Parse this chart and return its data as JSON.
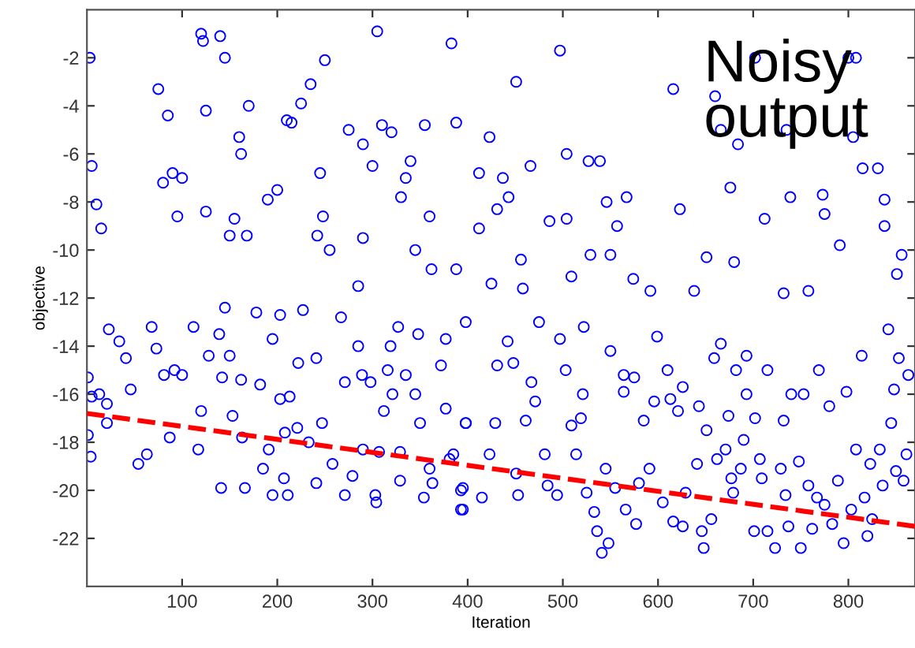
{
  "chart_data": {
    "type": "scatter",
    "xlabel": "Iteration",
    "ylabel": "objective",
    "annotations": [
      "Noisy\noutput"
    ],
    "xlim": [
      0,
      870
    ],
    "ylim": [
      -24,
      0
    ],
    "xticks": [
      100,
      200,
      300,
      400,
      500,
      600,
      700,
      800
    ],
    "yticks": [
      -22,
      -20,
      -18,
      -16,
      -14,
      -12,
      -10,
      -8,
      -6,
      -4,
      -2
    ],
    "grid": false,
    "legend": false,
    "series": [
      {
        "marker": "circle",
        "color": "#0000ff",
        "x": [
          3,
          5,
          10,
          15,
          120,
          122,
          140,
          145,
          125,
          75,
          85,
          80,
          90,
          100,
          95,
          125,
          155,
          160,
          162,
          170,
          168,
          150,
          190,
          200,
          210,
          215,
          225,
          235,
          250,
          245,
          248,
          242,
          305,
          310,
          320,
          330,
          335,
          340,
          355,
          360,
          362,
          345,
          290,
          275,
          300,
          290,
          255,
          285,
          383,
          497,
          451,
          616,
          702,
          800,
          808,
          660,
          666,
          735,
          805,
          684,
          388,
          423,
          504,
          527,
          539,
          412,
          437,
          466,
          443,
          431,
          676,
          623,
          739,
          773,
          815,
          831,
          838,
          712,
          775,
          791,
          838,
          856,
          851,
          546,
          567,
          557,
          504,
          486,
          412,
          456,
          529,
          550,
          651,
          680,
          388,
          509,
          425,
          458,
          574,
          592,
          638,
          732,
          758,
          1,
          5,
          13,
          21,
          1,
          4,
          21,
          23,
          34,
          41,
          46,
          54,
          63,
          68,
          73,
          81,
          92,
          87,
          100,
          112,
          117,
          120,
          128,
          139,
          142,
          145,
          150,
          162,
          141,
          166,
          153,
          163,
          178,
          182,
          191,
          185,
          195,
          203,
          203,
          208,
          213,
          207,
          195,
          211,
          221,
          222,
          227,
          233,
          241,
          241,
          247,
          258,
          267,
          271,
          271,
          279,
          285,
          289,
          290,
          298,
          303,
          304,
          307,
          312,
          316,
          319,
          321,
          327,
          329,
          329,
          335,
          345,
          348,
          350,
          354,
          360,
          363,
          377,
          372,
          377,
          385,
          393,
          395,
          398,
          398,
          381,
          398,
          393,
          395,
          415,
          423,
          429,
          431,
          442,
          448,
          451,
          453,
          461,
          467,
          471,
          475,
          481,
          484,
          494,
          497,
          503,
          509,
          514,
          519,
          522,
          521,
          525,
          533,
          536,
          541,
          545,
          548,
          550,
          555,
          564,
          564,
          566,
          575,
          577,
          580,
          585,
          591,
          596,
          599,
          605,
          610,
          613,
          616,
          621,
          626,
          626,
          629,
          641,
          643,
          646,
          648,
          651,
          656,
          659,
          662,
          666,
          671,
          674,
          677,
          679,
          682,
          687,
          690,
          693,
          693,
          701,
          702,
          707,
          709,
          715,
          715,
          723,
          729,
          732,
          734,
          737,
          740,
          748,
          750,
          753,
          758,
          762,
          767,
          769,
          775,
          780,
          783,
          789,
          795,
          798,
          803,
          808,
          814,
          817,
          820,
          823,
          825,
          833,
          836,
          842,
          845,
          848,
          850,
          853,
          858,
          861,
          863
        ],
        "values": [
          -2.0,
          -6.5,
          -8.1,
          -9.1,
          -1.0,
          -1.3,
          -1.1,
          -2.0,
          -4.2,
          -3.3,
          -4.4,
          -7.2,
          -6.8,
          -7.0,
          -8.6,
          -8.4,
          -8.7,
          -5.3,
          -6.0,
          -4.0,
          -9.4,
          -9.4,
          -7.9,
          -7.5,
          -4.6,
          -4.7,
          -3.9,
          -3.1,
          -2.1,
          -6.8,
          -8.6,
          -9.4,
          -0.9,
          -4.8,
          -5.1,
          -7.8,
          -7.0,
          -6.3,
          -4.8,
          -8.6,
          -10.8,
          -10.0,
          -5.6,
          -5.0,
          -6.5,
          -9.5,
          -10.0,
          -11.5,
          -1.4,
          -1.7,
          -3.0,
          -3.3,
          -2.0,
          -2.0,
          -2.0,
          -3.6,
          -5.0,
          -5.0,
          -5.3,
          -5.6,
          -4.7,
          -5.3,
          -6.0,
          -6.3,
          -6.3,
          -6.8,
          -7.0,
          -6.5,
          -7.8,
          -8.3,
          -7.4,
          -8.3,
          -7.8,
          -7.7,
          -6.6,
          -6.6,
          -7.9,
          -8.7,
          -8.5,
          -9.8,
          -9.0,
          -10.2,
          -11.0,
          -8.0,
          -7.8,
          -9.0,
          -8.7,
          -8.8,
          -9.1,
          -10.4,
          -10.2,
          -10.2,
          -10.3,
          -10.5,
          -10.8,
          -11.1,
          -11.4,
          -11.6,
          -11.2,
          -11.7,
          -11.7,
          -11.8,
          -11.7,
          -15.3,
          -16.1,
          -16.0,
          -16.4,
          -17.7,
          -18.6,
          -17.2,
          -13.3,
          -13.8,
          -14.5,
          -15.8,
          -18.9,
          -18.5,
          -13.2,
          -14.1,
          -15.2,
          -15.0,
          -17.8,
          -15.2,
          -13.2,
          -18.3,
          -16.7,
          -14.4,
          -13.5,
          -15.3,
          -12.4,
          -14.4,
          -15.4,
          -19.9,
          -19.9,
          -16.9,
          -17.8,
          -12.6,
          -15.6,
          -18.3,
          -19.1,
          -13.7,
          -12.7,
          -16.2,
          -17.6,
          -16.1,
          -19.5,
          -20.2,
          -20.2,
          -17.4,
          -14.7,
          -12.5,
          -18.0,
          -19.7,
          -14.5,
          -17.2,
          -18.9,
          -12.8,
          -15.5,
          -20.2,
          -19.4,
          -14.0,
          -15.2,
          -18.3,
          -15.5,
          -20.2,
          -20.5,
          -18.4,
          -16.7,
          -15.0,
          -14.0,
          -16.0,
          -13.2,
          -18.4,
          -19.6,
          -15.2,
          -16.0,
          -13.5,
          -17.2,
          -20.3,
          -19.1,
          -19.7,
          -13.7,
          -14.8,
          -16.6,
          -18.5,
          -20.8,
          -19.9,
          -13.0,
          -17.2,
          -18.7,
          -17.2,
          -20.0,
          -20.8,
          -20.3,
          -18.5,
          -17.2,
          -14.8,
          -13.8,
          -14.7,
          -19.3,
          -20.2,
          -17.1,
          -15.5,
          -16.3,
          -13.0,
          -18.5,
          -19.8,
          -20.2,
          -13.7,
          -15.0,
          -17.3,
          -18.5,
          -17.0,
          -13.2,
          -16.0,
          -20.1,
          -20.9,
          -21.7,
          -22.6,
          -19.1,
          -22.2,
          -14.2,
          -19.9,
          -15.2,
          -15.9,
          -20.8,
          -15.3,
          -21.4,
          -19.7,
          -17.1,
          -19.1,
          -16.3,
          -13.6,
          -20.5,
          -15.0,
          -16.2,
          -21.3,
          -16.7,
          -15.7,
          -21.5,
          -20.1,
          -18.9,
          -16.5,
          -21.7,
          -22.4,
          -17.5,
          -21.2,
          -14.5,
          -18.7,
          -13.9,
          -18.3,
          -16.9,
          -19.5,
          -20.1,
          -15.0,
          -19.1,
          -17.9,
          -16.0,
          -14.4,
          -21.7,
          -17.0,
          -18.7,
          -19.5,
          -15.0,
          -21.7,
          -22.4,
          -19.1,
          -17.1,
          -20.2,
          -21.5,
          -16.0,
          -18.8,
          -22.4,
          -16.0,
          -19.8,
          -21.6,
          -20.3,
          -15.0,
          -20.6,
          -16.5,
          -21.4,
          -19.6,
          -22.2,
          -15.9,
          -20.8,
          -18.3,
          -14.4,
          -20.3,
          -21.9,
          -18.9,
          -21.2,
          -18.3,
          -19.8,
          -13.3,
          -17.2,
          -15.8,
          -19.2,
          -14.5,
          -19.6,
          -18.5,
          -15.2
        ]
      },
      {
        "type": "line",
        "color": "#ff0000",
        "line_style": "dashed",
        "marker": "none",
        "x": [
          0,
          870
        ],
        "values": [
          -16.8,
          -21.5
        ]
      }
    ]
  }
}
